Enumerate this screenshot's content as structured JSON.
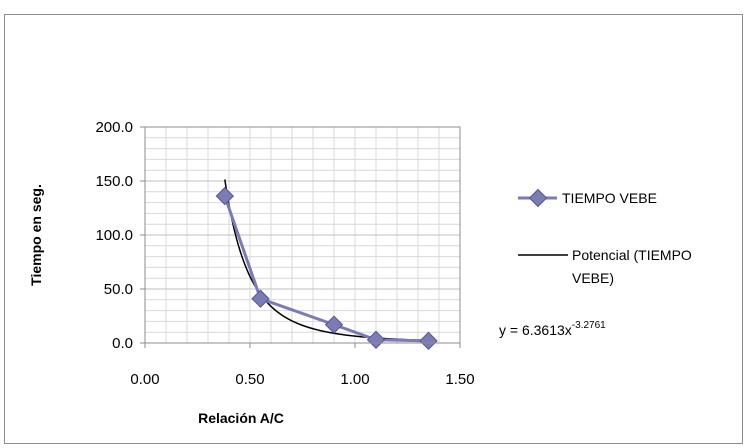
{
  "chart_data": {
    "type": "scatter",
    "title": "",
    "xlabel": "Relación A/C",
    "ylabel": "Tiempo en seg.",
    "xlim": [
      0.0,
      1.5
    ],
    "ylim": [
      0.0,
      200.0
    ],
    "x_ticks": [
      "0.00",
      "0.50",
      "1.00",
      "1.50"
    ],
    "y_ticks": [
      "0.0",
      "50.0",
      "100.0",
      "150.0",
      "200.0"
    ],
    "grid": true,
    "legend_position": "right",
    "series": [
      {
        "name": "TIEMPO VEBE",
        "color": "#7b7bb5",
        "marker": "diamond",
        "x": [
          0.38,
          0.55,
          0.9,
          1.1,
          1.35
        ],
        "y": [
          136,
          41,
          17,
          3,
          2
        ]
      }
    ],
    "trendline": {
      "name": "Potencial (TIEMPO VEBE)",
      "color": "#000000",
      "equation_text": "y = 6.3613x",
      "exponent_text": "-3.2761",
      "a": 6.3613,
      "b": -3.2761,
      "x_range": [
        0.38,
        1.35
      ]
    }
  }
}
